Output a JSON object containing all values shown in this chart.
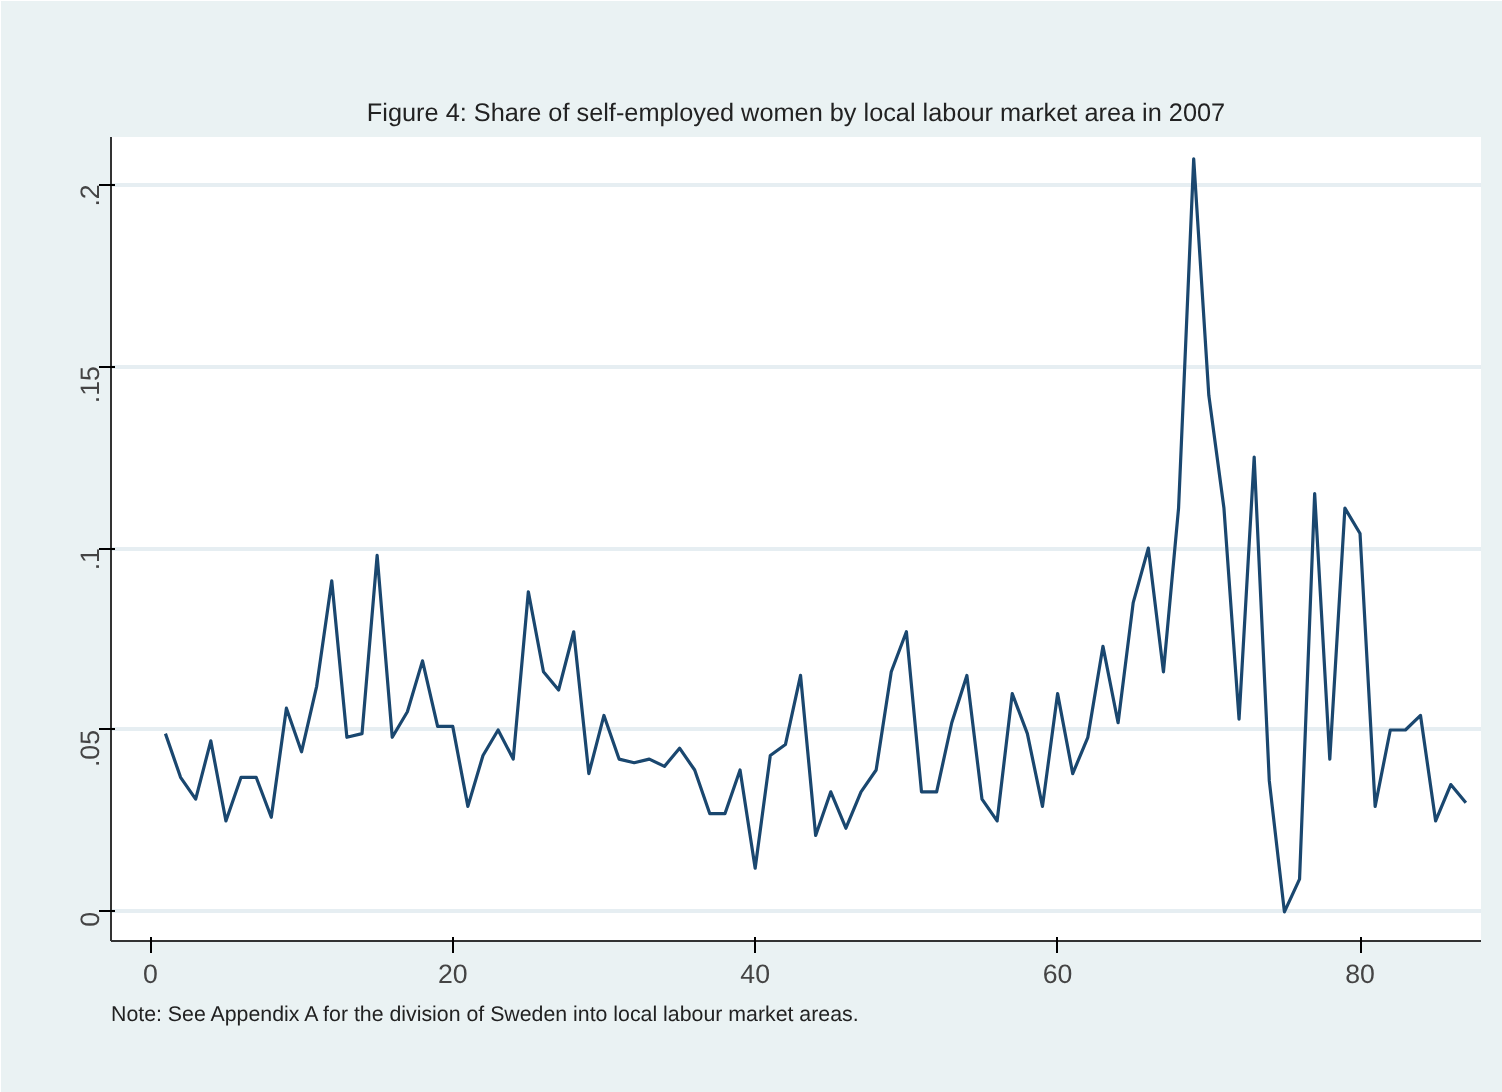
{
  "chart_data": {
    "type": "line",
    "title": "Figure 4: Share of self-employed women by local labour market area in 2007",
    "annotations": [
      "Note: See Appendix A for the division of Sweden into local labour market areas."
    ],
    "x": [
      1,
      2,
      3,
      4,
      5,
      6,
      7,
      8,
      9,
      10,
      11,
      12,
      13,
      14,
      15,
      16,
      17,
      18,
      19,
      20,
      21,
      22,
      23,
      24,
      25,
      26,
      27,
      28,
      29,
      30,
      31,
      32,
      33,
      34,
      35,
      36,
      37,
      38,
      39,
      40,
      41,
      42,
      43,
      44,
      45,
      46,
      47,
      48,
      49,
      50,
      51,
      52,
      53,
      54,
      55,
      56,
      57,
      58,
      59,
      60,
      61,
      62,
      63,
      64,
      65,
      66,
      67,
      68,
      69,
      70,
      71,
      72,
      73,
      74,
      75,
      76,
      77,
      78,
      79,
      80,
      81,
      82,
      83,
      84,
      85,
      86,
      87
    ],
    "series": [
      {
        "color": "#1a476f",
        "values": [
          0.049,
          0.037,
          0.031,
          0.047,
          0.025,
          0.037,
          0.037,
          0.026,
          0.056,
          0.044,
          0.062,
          0.091,
          0.048,
          0.049,
          0.098,
          0.048,
          0.055,
          0.069,
          0.051,
          0.051,
          0.029,
          0.043,
          0.05,
          0.042,
          0.088,
          0.066,
          0.061,
          0.077,
          0.038,
          0.054,
          0.042,
          0.041,
          0.042,
          0.04,
          0.045,
          0.039,
          0.027,
          0.027,
          0.039,
          0.012,
          0.043,
          0.046,
          0.065,
          0.021,
          0.033,
          0.023,
          0.033,
          0.039,
          0.066,
          0.077,
          0.033,
          0.033,
          0.052,
          0.065,
          0.031,
          0.025,
          0.06,
          0.049,
          0.029,
          0.06,
          0.038,
          0.048,
          0.073,
          0.052,
          0.085,
          0.1,
          0.066,
          0.111,
          0.207,
          0.142,
          0.111,
          0.053,
          0.125,
          0.036,
          0.0,
          0.009,
          0.115,
          0.042,
          0.111,
          0.104,
          0.029,
          0.05,
          0.05,
          0.054,
          0.025,
          0.035,
          0.03
        ]
      }
    ],
    "xlim": [
      -2.6,
      88
    ],
    "ylim": [
      -0.008,
      0.213
    ],
    "xticks": [
      0,
      20,
      40,
      60,
      80
    ],
    "yticks": [
      {
        "value": 0,
        "label": "0"
      },
      {
        "value": 0.05,
        "label": ".05"
      },
      {
        "value": 0.1,
        "label": ".1"
      },
      {
        "value": 0.15,
        "label": ".15"
      },
      {
        "value": 0.2,
        "label": ".2"
      }
    ],
    "grid": "y",
    "marker": "none",
    "line_style": "solid"
  }
}
